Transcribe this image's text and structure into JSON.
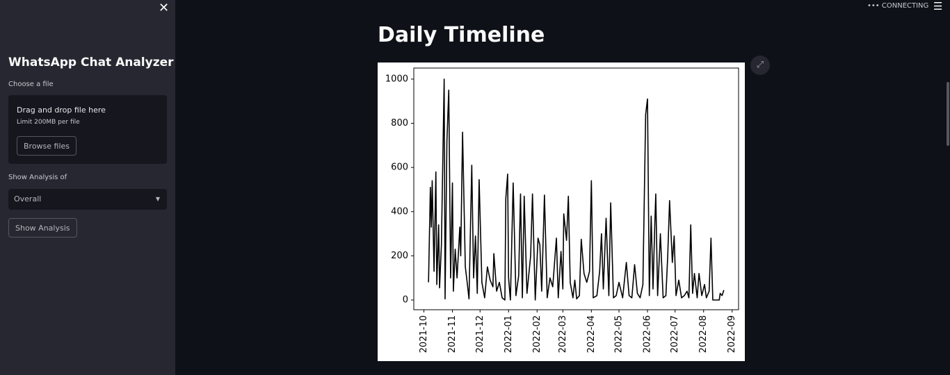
{
  "sidebar": {
    "title": "WhatsApp Chat Analyzer",
    "file_label": "Choose a file",
    "drop_text": "Drag and drop file here",
    "limit_text": "Limit 200MB per file",
    "browse_button": "Browse files",
    "select_label": "Show Analysis of",
    "select_value": "Overall",
    "analysis_button": "Show Analysis"
  },
  "status": "CONNECTING",
  "header": "Daily Timeline",
  "chart_data": {
    "type": "line",
    "color": "#000000",
    "grid": false,
    "x": [
      18906,
      18908,
      18909,
      18910,
      18912,
      18914,
      18915,
      18917,
      18918,
      18920,
      18923,
      18924,
      18926,
      18928,
      18930,
      18932,
      18933,
      18935,
      18937,
      18940,
      18941,
      18943,
      18946,
      18948,
      18950,
      18953,
      18955,
      18957,
      18959,
      18961,
      18964,
      18967,
      18970,
      18973,
      18976,
      18977,
      18980,
      18983,
      18986,
      18989,
      18990,
      18992,
      18993,
      18995,
      18998,
      19001,
      19004,
      19006,
      19008,
      19010,
      19013,
      19017,
      19019,
      19022,
      19025,
      19027,
      19029,
      19032,
      19035,
      19038,
      19041,
      19045,
      19047,
      19050,
      19052,
      19053,
      19056,
      19058,
      19060,
      19063,
      19065,
      19067,
      19070,
      19072,
      19075,
      19078,
      19081,
      19083,
      19085,
      19089,
      19092,
      19094,
      19096,
      19099,
      19102,
      19104,
      19107,
      19110,
      19113,
      19117,
      19121,
      19124,
      19127,
      19130,
      19133,
      19136,
      19139,
      19142,
      19144,
      19146,
      19148,
      19150,
      19152,
      19153,
      19155,
      19158,
      19161,
      19164,
      19166,
      19168,
      19171,
      19173,
      19175,
      19178,
      19181,
      19184,
      19187,
      19189,
      19191,
      19193,
      19195,
      19198,
      19200,
      19203,
      19206,
      19208,
      19211,
      19213,
      19215,
      19219,
      19222,
      19223,
      19225,
      19227
    ],
    "values": [
      80,
      510,
      330,
      540,
      130,
      580,
      70,
      340,
      55,
      250,
      1000,
      5,
      720,
      950,
      100,
      530,
      40,
      230,
      100,
      330,
      200,
      760,
      150,
      80,
      5,
      610,
      100,
      290,
      30,
      545,
      80,
      10,
      150,
      90,
      60,
      210,
      40,
      80,
      10,
      0,
      460,
      570,
      100,
      0,
      530,
      20,
      110,
      480,
      10,
      470,
      30,
      200,
      480,
      0,
      280,
      250,
      40,
      475,
      10,
      100,
      60,
      280,
      10,
      220,
      50,
      390,
      270,
      470,
      80,
      10,
      90,
      5,
      20,
      275,
      120,
      80,
      130,
      540,
      10,
      20,
      130,
      300,
      50,
      370,
      20,
      440,
      10,
      20,
      80,
      10,
      170,
      20,
      10,
      160,
      30,
      10,
      70,
      840,
      910,
      20,
      380,
      50,
      350,
      480,
      20,
      300,
      10,
      20,
      200,
      450,
      170,
      290,
      20,
      90,
      10,
      20,
      40,
      10,
      340,
      30,
      120,
      10,
      120,
      20,
      70,
      10,
      40,
      280,
      0,
      0,
      0,
      30,
      20,
      45
    ],
    "xlim": [
      18890,
      19243
    ],
    "xticks": [
      {
        "value": 18901,
        "label": "2021-10"
      },
      {
        "value": 18932,
        "label": "2021-11"
      },
      {
        "value": 18962,
        "label": "2021-12"
      },
      {
        "value": 18993,
        "label": "2022-01"
      },
      {
        "value": 19024,
        "label": "2022-02"
      },
      {
        "value": 19052,
        "label": "2022-03"
      },
      {
        "value": 19083,
        "label": "2022-04"
      },
      {
        "value": 19113,
        "label": "2022-05"
      },
      {
        "value": 19144,
        "label": "2022-06"
      },
      {
        "value": 19174,
        "label": "2022-07"
      },
      {
        "value": 19205,
        "label": "2022-08"
      },
      {
        "value": 19236,
        "label": "2022-09"
      }
    ],
    "ylim": [
      -44,
      1050
    ],
    "yticks": [
      0,
      200,
      400,
      600,
      800,
      1000
    ]
  }
}
